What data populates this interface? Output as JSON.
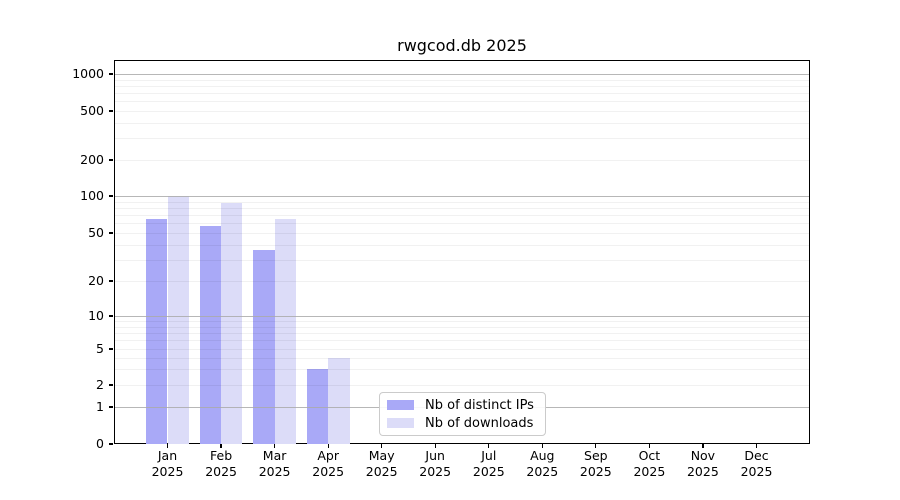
{
  "title": "rwgcod.db 2025",
  "chart_data": {
    "type": "bar",
    "title": "rwgcod.db 2025",
    "xlabel": "",
    "ylabel": "",
    "year": "2025",
    "categories": [
      "Jan",
      "Feb",
      "Mar",
      "Apr",
      "May",
      "Jun",
      "Jul",
      "Aug",
      "Sep",
      "Oct",
      "Nov",
      "Dec"
    ],
    "series": [
      {
        "name": "Nb of distinct IPs",
        "color": "#a9a9f7",
        "values": [
          65,
          57,
          36,
          3,
          0,
          0,
          0,
          0,
          0,
          0,
          0,
          0
        ]
      },
      {
        "name": "Nb of downloads",
        "color": "#dcdcf8",
        "values": [
          100,
          88,
          65,
          4,
          0,
          0,
          0,
          0,
          0,
          0,
          0,
          0
        ]
      }
    ],
    "y_axis": {
      "scale": "log-like (symlog with 0 baseline)",
      "tick_values": [
        0,
        1,
        2,
        5,
        10,
        20,
        50,
        100,
        200,
        500,
        1000
      ],
      "tick_labels": [
        "0",
        "1",
        "2",
        "5",
        "10",
        "20",
        "50",
        "100",
        "200",
        "500",
        "1000"
      ],
      "ylim": [
        0,
        1000
      ],
      "major_gridline_values": [
        1,
        10,
        100,
        1000
      ],
      "minor_gridline_values": [
        2,
        3,
        4,
        5,
        6,
        7,
        8,
        9,
        20,
        30,
        40,
        50,
        60,
        70,
        80,
        90,
        200,
        300,
        400,
        500,
        600,
        700,
        800,
        900
      ]
    },
    "grid": {
      "major": true,
      "minor": true
    },
    "legend": {
      "position": "bottom-center",
      "entries": [
        "Nb of distinct IPs",
        "Nb of downloads"
      ]
    }
  }
}
